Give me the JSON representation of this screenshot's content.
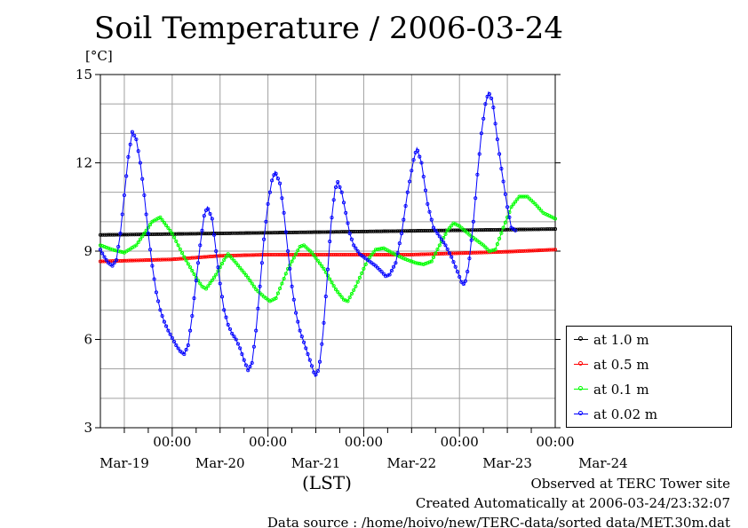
{
  "chart_data": {
    "type": "line",
    "title": "Soil Temperature / 2006-03-24",
    "ylabel": "[°C]",
    "xlabel": "(LST)",
    "ylim": [
      3,
      15
    ],
    "yticks": [
      "3",
      "6",
      "9",
      "12",
      "15"
    ],
    "x_tick_time_label": "00:00",
    "x_day_labels": [
      "Mar-19",
      "Mar-20",
      "Mar-21",
      "Mar-22",
      "Mar-23",
      "Mar-24"
    ],
    "x_range_hours": [
      -18,
      96
    ],
    "grid": true,
    "legend_position": "right",
    "series": [
      {
        "name": "at 1.0 m",
        "color": "#000000",
        "points": [
          [
            -18,
            9.55
          ],
          [
            96,
            9.75
          ]
        ]
      },
      {
        "name": "at 0.5 m",
        "color": "#ff0000",
        "points": [
          [
            -18,
            8.65
          ],
          [
            0,
            8.72
          ],
          [
            12,
            8.84
          ],
          [
            24,
            8.88
          ],
          [
            36,
            8.88
          ],
          [
            48,
            8.88
          ],
          [
            60,
            8.88
          ],
          [
            72,
            8.93
          ],
          [
            84,
            8.98
          ],
          [
            96,
            9.05
          ]
        ]
      },
      {
        "name": "at 0.1 m",
        "color": "#00ff00",
        "points": [
          [
            -18,
            9.2
          ],
          [
            -15,
            9.05
          ],
          [
            -12,
            8.95
          ],
          [
            -9,
            9.2
          ],
          [
            -5,
            10.0
          ],
          [
            -3,
            10.15
          ],
          [
            0,
            9.6
          ],
          [
            3,
            8.8
          ],
          [
            6,
            8.1
          ],
          [
            7.5,
            7.8
          ],
          [
            8.5,
            7.72
          ],
          [
            11,
            8.2
          ],
          [
            13,
            8.7
          ],
          [
            14,
            8.9
          ],
          [
            16,
            8.6
          ],
          [
            19,
            8.1
          ],
          [
            21,
            7.7
          ],
          [
            23,
            7.45
          ],
          [
            24.5,
            7.3
          ],
          [
            26,
            7.4
          ],
          [
            29,
            8.4
          ],
          [
            32,
            9.15
          ],
          [
            33,
            9.2
          ],
          [
            35,
            8.95
          ],
          [
            38,
            8.4
          ],
          [
            41,
            7.7
          ],
          [
            43,
            7.35
          ],
          [
            44,
            7.3
          ],
          [
            46,
            7.8
          ],
          [
            49,
            8.7
          ],
          [
            51,
            9.05
          ],
          [
            53,
            9.1
          ],
          [
            55,
            8.95
          ],
          [
            58,
            8.75
          ],
          [
            61,
            8.6
          ],
          [
            63,
            8.55
          ],
          [
            65,
            8.65
          ],
          [
            67,
            9.2
          ],
          [
            69,
            9.7
          ],
          [
            70.5,
            9.95
          ],
          [
            72,
            9.85
          ],
          [
            75,
            9.5
          ],
          [
            78,
            9.2
          ],
          [
            79.5,
            9.0
          ],
          [
            81,
            9.05
          ],
          [
            83,
            9.8
          ],
          [
            85,
            10.5
          ],
          [
            87,
            10.85
          ],
          [
            89,
            10.85
          ],
          [
            91,
            10.6
          ],
          [
            93,
            10.3
          ],
          [
            96,
            10.1
          ]
        ]
      },
      {
        "name": "at 0.02 m",
        "color": "#0000ff",
        "points": [
          [
            -18,
            9.05
          ],
          [
            -17,
            8.8
          ],
          [
            -16,
            8.6
          ],
          [
            -15,
            8.5
          ],
          [
            -14,
            8.7
          ],
          [
            -13,
            9.6
          ],
          [
            -12,
            10.9
          ],
          [
            -11,
            12.2
          ],
          [
            -10,
            13.05
          ],
          [
            -9,
            12.8
          ],
          [
            -8,
            12.0
          ],
          [
            -7,
            10.9
          ],
          [
            -6,
            9.6
          ],
          [
            -5,
            8.5
          ],
          [
            -4,
            7.6
          ],
          [
            -3,
            7.0
          ],
          [
            -2,
            6.6
          ],
          [
            -1,
            6.3
          ],
          [
            0,
            6.05
          ],
          [
            1,
            5.8
          ],
          [
            2,
            5.6
          ],
          [
            3,
            5.5
          ],
          [
            4,
            5.8
          ],
          [
            5,
            6.8
          ],
          [
            6,
            8.0
          ],
          [
            7,
            9.2
          ],
          [
            8,
            10.2
          ],
          [
            8.8,
            10.5
          ],
          [
            10,
            10.1
          ],
          [
            11,
            9.0
          ],
          [
            12,
            7.9
          ],
          [
            13,
            7.0
          ],
          [
            14,
            6.5
          ],
          [
            15,
            6.2
          ],
          [
            16,
            6.0
          ],
          [
            17,
            5.7
          ],
          [
            18,
            5.3
          ],
          [
            19,
            4.95
          ],
          [
            20,
            5.2
          ],
          [
            21,
            6.3
          ],
          [
            22,
            7.8
          ],
          [
            23,
            9.4
          ],
          [
            24,
            10.6
          ],
          [
            25,
            11.4
          ],
          [
            25.8,
            11.7
          ],
          [
            27,
            11.3
          ],
          [
            28,
            10.3
          ],
          [
            29,
            9.0
          ],
          [
            30,
            7.8
          ],
          [
            31,
            6.9
          ],
          [
            32,
            6.3
          ],
          [
            33,
            5.9
          ],
          [
            34,
            5.5
          ],
          [
            35,
            5.1
          ],
          [
            35.8,
            4.75
          ],
          [
            36.8,
            5.0
          ],
          [
            37.8,
            6.2
          ],
          [
            38.8,
            8.0
          ],
          [
            39.8,
            9.9
          ],
          [
            40.8,
            11.1
          ],
          [
            41.5,
            11.35
          ],
          [
            42.5,
            11.0
          ],
          [
            43.5,
            10.3
          ],
          [
            44.5,
            9.6
          ],
          [
            45.5,
            9.2
          ],
          [
            47,
            8.9
          ],
          [
            49,
            8.7
          ],
          [
            51,
            8.5
          ],
          [
            52.5,
            8.3
          ],
          [
            53.5,
            8.15
          ],
          [
            54.5,
            8.2
          ],
          [
            56,
            8.6
          ],
          [
            57.5,
            9.6
          ],
          [
            59,
            11.0
          ],
          [
            60.5,
            12.1
          ],
          [
            61.3,
            12.5
          ],
          [
            62.5,
            12.0
          ],
          [
            64,
            10.6
          ],
          [
            65.5,
            9.8
          ],
          [
            67,
            9.5
          ],
          [
            68.5,
            9.2
          ],
          [
            70,
            8.8
          ],
          [
            71.5,
            8.3
          ],
          [
            72.5,
            7.95
          ],
          [
            73.3,
            7.85
          ],
          [
            74.3,
            8.5
          ],
          [
            75.5,
            10.0
          ],
          [
            76.5,
            11.6
          ],
          [
            77.5,
            13.0
          ],
          [
            78.5,
            14.0
          ],
          [
            79.3,
            14.4
          ],
          [
            80.3,
            14.1
          ],
          [
            81.3,
            13.0
          ],
          [
            82.5,
            11.8
          ],
          [
            84,
            10.5
          ],
          [
            85,
            9.8
          ],
          [
            86,
            9.7
          ]
        ]
      }
    ]
  },
  "footer": {
    "observed": "Observed at TERC Tower site",
    "created": "Created Automatically at 2006-03-24/23:32:07",
    "source": "Data source : /home/hoivo/new/TERC-data/sorted  data/MET.30m.dat"
  }
}
